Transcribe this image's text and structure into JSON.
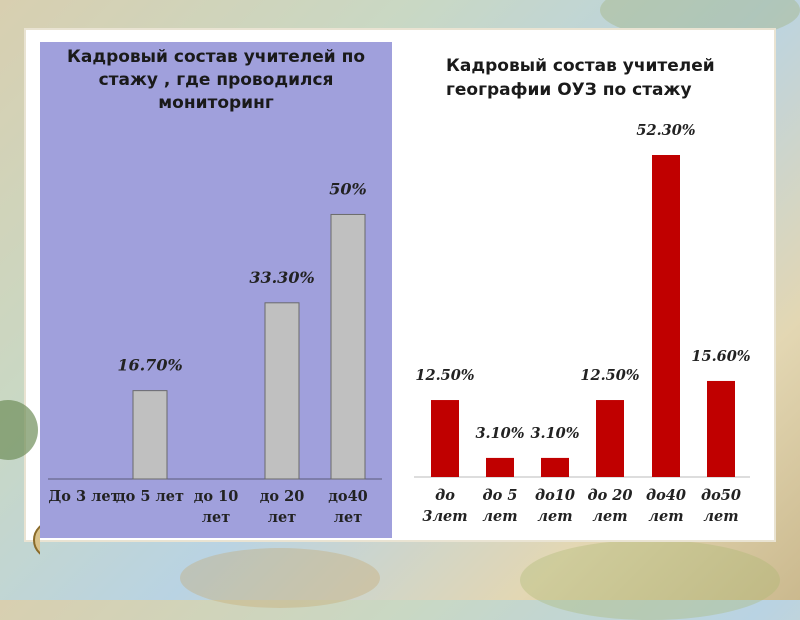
{
  "charts": [
    {
      "title": "Кадровый состав учителей по стажу , где проводился мониторинг"
    },
    {
      "title": "Кадровый состав учителей географии ОУЗ по стажу"
    }
  ],
  "chart_data": [
    {
      "type": "bar",
      "title": "Кадровый состав учителей по стажу , где проводился мониторинг",
      "categories": [
        "До 3 лет",
        "до 5 лет",
        "до 10 лет",
        "до 20 лет",
        "до40 лет"
      ],
      "values": [
        0,
        16.7,
        0,
        33.3,
        50
      ],
      "data_labels": [
        "",
        "16.70%",
        "",
        "33.30%",
        "50%"
      ],
      "ylim": [
        0,
        55
      ],
      "bar_color": "#c0c0c0",
      "background": "#a0a0dc",
      "grid": false,
      "legend": "none"
    },
    {
      "type": "bar",
      "title": "Кадровый состав учителей географии ОУЗ по стажу",
      "categories": [
        "до 3лет",
        "до 5 лет",
        "до10 лет",
        "до 20 лет",
        "до40 лет",
        "до50 лет"
      ],
      "values": [
        12.5,
        3.1,
        3.1,
        12.5,
        52.3,
        15.6
      ],
      "data_labels": [
        "12.50%",
        "3.10%",
        "3.10%",
        "12.50%",
        "52.30%",
        "15.60%"
      ],
      "ylim": [
        0,
        52.3
      ],
      "bar_color": "#c00000",
      "background": "#ffffff",
      "grid": false,
      "legend": "none"
    }
  ]
}
